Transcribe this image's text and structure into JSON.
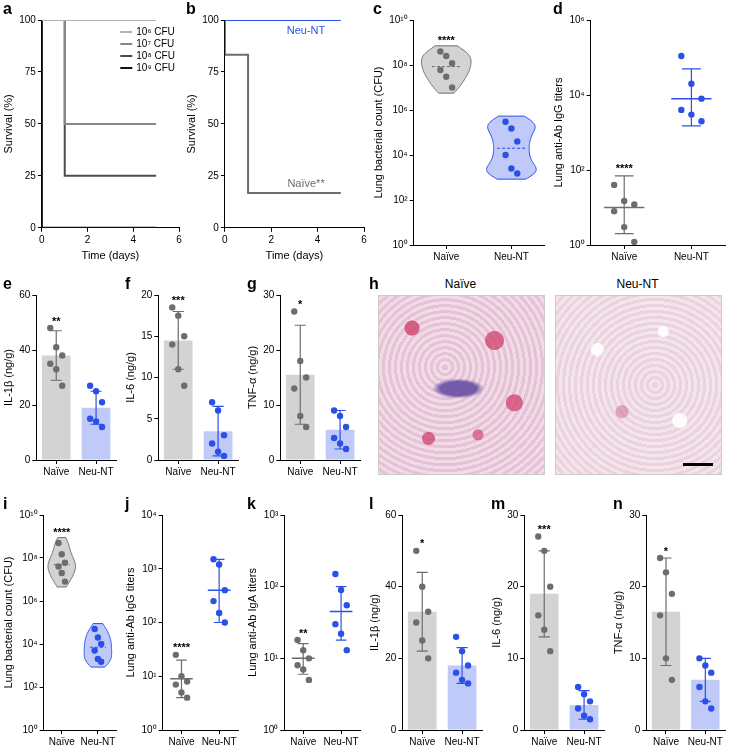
{
  "chart_data": [
    {
      "panel": "a",
      "type": "line",
      "line_style": "stepped",
      "x_label": "Time (days)",
      "y_label": "Survival (%)",
      "x": [
        0,
        1,
        2,
        5
      ],
      "series": [
        {
          "name": "10⁶ CFU",
          "color": "#b3b3b3",
          "values": [
            100,
            100,
            100,
            100
          ]
        },
        {
          "name": "10⁷ CFU",
          "color": "#888888",
          "values": [
            100,
            100,
            50,
            50
          ]
        },
        {
          "name": "10⁸ CFU",
          "color": "#4d4d4d",
          "values": [
            100,
            100,
            25,
            25
          ]
        },
        {
          "name": "10⁹ CFU",
          "color": "#111111",
          "values": [
            100,
            0,
            0,
            0
          ]
        }
      ],
      "xlim": [
        0,
        6
      ],
      "xticks": [
        0,
        2,
        4,
        6
      ],
      "ylim": [
        0,
        100
      ],
      "yticks": [
        0,
        25,
        50,
        75,
        100
      ],
      "grid": false,
      "legend": "upper right"
    },
    {
      "panel": "b",
      "type": "line",
      "line_style": "stepped",
      "x_label": "Time (days)",
      "y_label": "Survival (%)",
      "x": [
        0,
        1,
        2,
        5
      ],
      "series": [
        {
          "name": "Naïve**",
          "color": "#6d6d6d",
          "values": [
            100,
            83.3,
            16.7,
            16.7
          ]
        },
        {
          "name": "Neu-NT",
          "color": "#2b50e8",
          "values": [
            100,
            100,
            100,
            100
          ]
        }
      ],
      "xlim": [
        0,
        6
      ],
      "xticks": [
        0,
        2,
        4,
        6
      ],
      "ylim": [
        0,
        100
      ],
      "yticks": [
        0,
        25,
        50,
        75,
        100
      ],
      "grid": false,
      "legend": "inline"
    },
    {
      "panel": "c",
      "type": "violin",
      "y_label": "Lung bacterial count (CFU)",
      "log": "y",
      "categories": [
        "Naïve",
        "Neu-NT"
      ],
      "colors": [
        "#6d6d6d",
        "#2b50e8"
      ],
      "values": [
        [
          400000000,
          250000000,
          120000000,
          60000000,
          30000000,
          10000000
        ],
        [
          300000,
          150000,
          40000,
          10000,
          2500,
          1500
        ]
      ],
      "ylim": [
        1,
        10000000000
      ],
      "yticks": [
        {
          "value": 1,
          "label": "10⁰"
        },
        {
          "value": 100,
          "label": "10²"
        },
        {
          "value": 10000,
          "label": "10⁴"
        },
        {
          "value": 1000000,
          "label": "10⁶"
        },
        {
          "value": 100000000,
          "label": "10⁸"
        },
        {
          "value": 10000000000,
          "label": "10¹⁰"
        }
      ],
      "grid": false,
      "annotations": [
        {
          "text": "****",
          "category": "Naïve"
        }
      ]
    },
    {
      "panel": "d",
      "type": "dot",
      "y_label": "Lung anti-Ab IgG titers",
      "log": "y",
      "categories": [
        "Naïve",
        "Neu-NT"
      ],
      "colors": [
        "#6d6d6d",
        "#2b50e8"
      ],
      "values": [
        [
          40,
          15,
          12,
          8,
          3,
          1.2
        ],
        [
          110000,
          20000,
          8000,
          4000,
          3000,
          2000
        ]
      ],
      "mean": [
        10,
        8000
      ],
      "error_range": [
        [
          2,
          70
        ],
        [
          1500,
          50000
        ]
      ],
      "ylim": [
        1,
        1000000
      ],
      "yticks": [
        {
          "value": 1,
          "label": "10⁰"
        },
        {
          "value": 100,
          "label": "10²"
        },
        {
          "value": 10000,
          "label": "10⁴"
        },
        {
          "value": 1000000,
          "label": "10⁶"
        }
      ],
      "grid": false,
      "annotations": [
        {
          "text": "****",
          "category": "Naïve"
        }
      ]
    },
    {
      "panel": "e",
      "type": "bar",
      "y_label": "IL-1β (ng/g)",
      "categories": [
        "Naïve",
        "Neu-NT"
      ],
      "colors": [
        "#6d6d6d",
        "#2b50e8"
      ],
      "values": [
        38,
        19
      ],
      "error": [
        9,
        6
      ],
      "points": [
        [
          48,
          41,
          38,
          35,
          33,
          27
        ],
        [
          27,
          25,
          21,
          15,
          14,
          12
        ]
      ],
      "ylim": [
        0,
        60
      ],
      "yticks": [
        0,
        20,
        40,
        60
      ],
      "grid": false,
      "annotations": [
        {
          "text": "**",
          "category": "Naïve"
        }
      ]
    },
    {
      "panel": "f",
      "type": "bar",
      "y_label": "IL-6 (ng/g)",
      "categories": [
        "Naïve",
        "Neu-NT"
      ],
      "colors": [
        "#6d6d6d",
        "#2b50e8"
      ],
      "values": [
        14.5,
        3.5
      ],
      "error": [
        3.5,
        3
      ],
      "points": [
        [
          18.5,
          17.5,
          15,
          14,
          11,
          9
        ],
        [
          7,
          6,
          3,
          2,
          1,
          0.5
        ]
      ],
      "ylim": [
        0,
        20
      ],
      "yticks": [
        0,
        5,
        10,
        15,
        20
      ],
      "grid": false,
      "annotations": [
        {
          "text": "***",
          "category": "Naïve"
        }
      ]
    },
    {
      "panel": "g",
      "type": "bar",
      "y_label": "TNF-α (ng/g)",
      "categories": [
        "Naïve",
        "Neu-NT"
      ],
      "colors": [
        "#6d6d6d",
        "#2b50e8"
      ],
      "values": [
        15.5,
        5.5
      ],
      "error": [
        9,
        3.5
      ],
      "points": [
        [
          27,
          18,
          15,
          13,
          8,
          6
        ],
        [
          9,
          8,
          6,
          4,
          3,
          2
        ]
      ],
      "ylim": [
        0,
        30
      ],
      "yticks": [
        0,
        10,
        20,
        30
      ],
      "grid": false,
      "annotations": [
        {
          "text": "*",
          "category": "Naïve"
        }
      ]
    },
    {
      "panel": "h",
      "type": "image",
      "labels": [
        "Naïve",
        "Neu-NT"
      ]
    },
    {
      "panel": "i",
      "type": "violin",
      "y_label": "Lung bacterial count (CFU)",
      "log": "y",
      "categories": [
        "Naïve",
        "Neu-NT"
      ],
      "colors": [
        "#6d6d6d",
        "#2b50e8"
      ],
      "values": [
        [
          500000000,
          150000000,
          60000000,
          40000000,
          20000000,
          8000000
        ],
        [
          50000,
          20000,
          10000,
          5000,
          2000,
          1500
        ]
      ],
      "ylim": [
        1,
        10000000000
      ],
      "yticks": [
        {
          "value": 1,
          "label": "10⁰"
        },
        {
          "value": 100,
          "label": "10²"
        },
        {
          "value": 10000,
          "label": "10⁴"
        },
        {
          "value": 1000000,
          "label": "10⁶"
        },
        {
          "value": 100000000,
          "label": "10⁸"
        },
        {
          "value": 10000000000,
          "label": "10¹⁰"
        }
      ],
      "grid": false,
      "annotations": [
        {
          "text": "****",
          "category": "Naïve"
        }
      ]
    },
    {
      "panel": "j",
      "type": "dot",
      "y_label": "Lung anti-Ab IgG titers",
      "log": "y",
      "categories": [
        "Naïve",
        "Neu-NT"
      ],
      "colors": [
        "#6d6d6d",
        "#2b50e8"
      ],
      "values": [
        [
          25,
          10,
          8,
          7,
          5,
          4
        ],
        [
          1500,
          1200,
          400,
          250,
          150,
          100
        ]
      ],
      "mean": [
        9,
        400
      ],
      "error_range": [
        [
          4,
          20
        ],
        [
          100,
          1500
        ]
      ],
      "ylim": [
        1,
        10000
      ],
      "yticks": [
        {
          "value": 1,
          "label": "10⁰"
        },
        {
          "value": 10,
          "label": "10¹"
        },
        {
          "value": 100,
          "label": "10²"
        },
        {
          "value": 1000,
          "label": "10³"
        },
        {
          "value": 10000,
          "label": "10⁴"
        }
      ],
      "grid": false,
      "annotations": [
        {
          "text": "****",
          "category": "Naïve"
        }
      ]
    },
    {
      "panel": "k",
      "type": "dot",
      "y_label": "Lung anti-Ab IgA titers",
      "log": "y",
      "categories": [
        "Naïve",
        "Neu-NT"
      ],
      "colors": [
        "#6d6d6d",
        "#2b50e8"
      ],
      "values": [
        [
          18,
          13,
          10,
          8,
          7,
          5
        ],
        [
          150,
          90,
          55,
          30,
          22,
          13
        ]
      ],
      "mean": [
        10,
        45
      ],
      "error_range": [
        [
          6,
          16
        ],
        [
          18,
          100
        ]
      ],
      "ylim": [
        1,
        1000
      ],
      "yticks": [
        {
          "value": 1,
          "label": "10⁰"
        },
        {
          "value": 10,
          "label": "10¹"
        },
        {
          "value": 100,
          "label": "10²"
        },
        {
          "value": 1000,
          "label": "10³"
        }
      ],
      "grid": false,
      "annotations": [
        {
          "text": "**",
          "category": "Naïve"
        }
      ]
    },
    {
      "panel": "l",
      "type": "bar",
      "y_label": "IL-1β (ng/g)",
      "categories": [
        "Naïve",
        "Neu-NT"
      ],
      "colors": [
        "#6d6d6d",
        "#2b50e8"
      ],
      "values": [
        33,
        18
      ],
      "error": [
        11,
        5
      ],
      "points": [
        [
          50,
          40,
          33,
          30,
          25,
          20
        ],
        [
          26,
          22,
          18,
          16,
          14,
          13
        ]
      ],
      "ylim": [
        0,
        60
      ],
      "yticks": [
        0,
        20,
        40,
        60
      ],
      "grid": false,
      "annotations": [
        {
          "text": "*",
          "category": "Naïve"
        }
      ]
    },
    {
      "panel": "m",
      "type": "bar",
      "y_label": "IL-6 (ng/g)",
      "categories": [
        "Naïve",
        "Neu-NT"
      ],
      "colors": [
        "#6d6d6d",
        "#2b50e8"
      ],
      "values": [
        19,
        3.5
      ],
      "error": [
        6,
        2
      ],
      "points": [
        [
          27,
          25,
          20,
          16,
          14,
          11
        ],
        [
          6,
          5,
          4,
          3,
          2,
          1.5
        ]
      ],
      "ylim": [
        0,
        30
      ],
      "yticks": [
        0,
        10,
        20,
        30
      ],
      "grid": false,
      "annotations": [
        {
          "text": "***",
          "category": "Naïve"
        }
      ]
    },
    {
      "panel": "n",
      "type": "bar",
      "y_label": "TNF-α (ng/g)",
      "categories": [
        "Naïve",
        "Neu-NT"
      ],
      "colors": [
        "#6d6d6d",
        "#2b50e8"
      ],
      "values": [
        16.5,
        7
      ],
      "error": [
        7.5,
        3
      ],
      "points": [
        [
          24,
          22,
          19,
          16,
          10,
          7
        ],
        [
          10,
          9,
          8,
          6,
          4,
          3
        ]
      ],
      "ylim": [
        0,
        30
      ],
      "yticks": [
        0,
        10,
        20,
        30
      ],
      "grid": false,
      "annotations": [
        {
          "text": "*",
          "category": "Naïve"
        }
      ]
    }
  ]
}
